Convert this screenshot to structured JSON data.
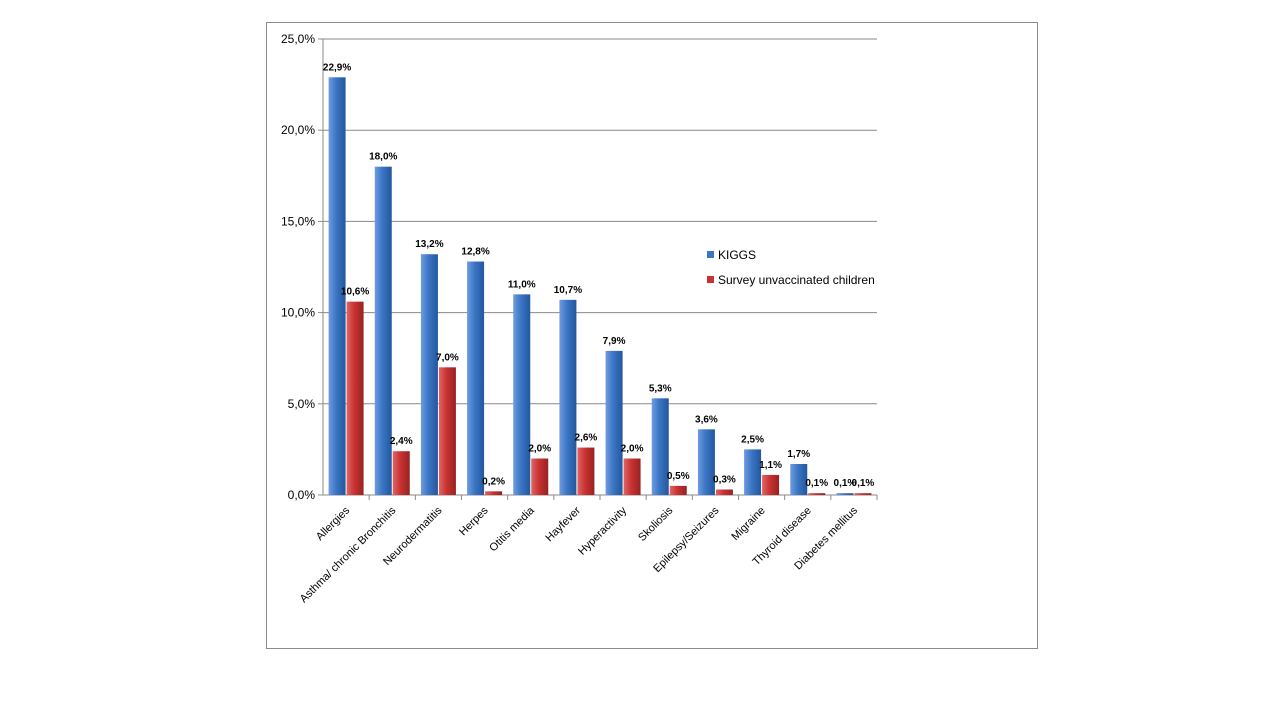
{
  "chart_data": {
    "type": "bar",
    "categories": [
      "Allergies",
      "Asthma/ chronic Bronchitis",
      "Neurodermatitis",
      "Herpes",
      "Otitis media",
      "Hayfever",
      "Hyperactivity",
      "Skoliosis",
      "Epilepsy/Seizures",
      "Migraine",
      "Thyroid disease",
      "Diabetes mellitus"
    ],
    "series": [
      {
        "name": "KIGGS",
        "color": "#3a75c4",
        "values": [
          22.9,
          18.0,
          13.2,
          12.8,
          11.0,
          10.7,
          7.9,
          5.3,
          3.6,
          2.5,
          1.7,
          0.1
        ],
        "labels": [
          "22,9%",
          "18,0%",
          "13,2%",
          "12,8%",
          "11,0%",
          "10,7%",
          "7,9%",
          "5,3%",
          "3,6%",
          "2,5%",
          "1,7%",
          "0,1%"
        ]
      },
      {
        "name": "Survey unvaccinated children",
        "color": "#c93232",
        "values": [
          10.6,
          2.4,
          7.0,
          0.2,
          2.0,
          2.6,
          2.0,
          0.5,
          0.3,
          1.1,
          0.1,
          0.1
        ],
        "labels": [
          "10,6%",
          "2,4%",
          "7,0%",
          "0,2%",
          "2,0%",
          "2,6%",
          "2,0%",
          "0,5%",
          "0,3%",
          "1,1%",
          "0,1%",
          "0,1%"
        ]
      }
    ],
    "y_ticks": [
      0,
      5,
      10,
      15,
      20,
      25
    ],
    "y_tick_labels": [
      "0,0%",
      "5,0%",
      "10,0%",
      "15,0%",
      "20,0%",
      "25,0%"
    ],
    "ylim": [
      0,
      25
    ],
    "grid": true,
    "legend_position": "right",
    "title": "",
    "xlabel": "",
    "ylabel": ""
  }
}
